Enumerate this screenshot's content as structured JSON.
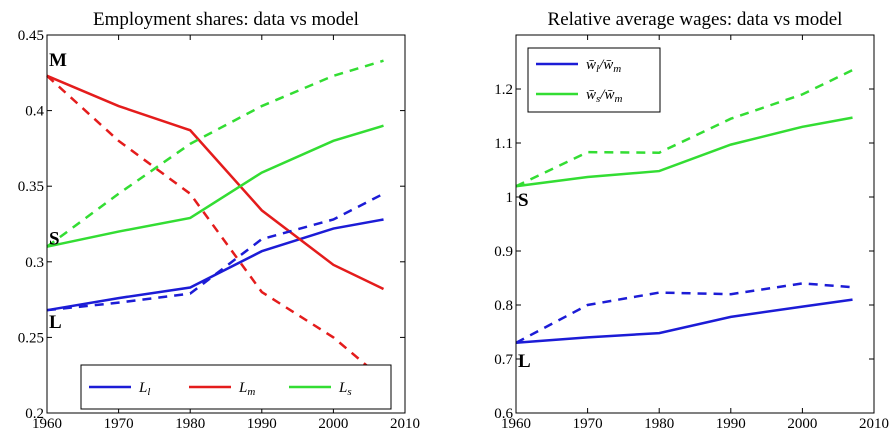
{
  "chart_data": [
    {
      "type": "line",
      "title": "Employment shares: data vs model",
      "x": [
        1960,
        1970,
        1980,
        1990,
        2000,
        2007
      ],
      "xlim": [
        1960,
        2010
      ],
      "xticks": [
        1960,
        1970,
        1980,
        1990,
        2000,
        2010
      ],
      "ylim": [
        0.2,
        0.45
      ],
      "yticks": [
        0.2,
        0.25,
        0.3,
        0.35,
        0.4,
        0.45
      ],
      "legend": "lower center",
      "series": [
        {
          "name": [
            "L",
            "l"
          ],
          "color": "#1c1cd6",
          "values": [
            0.268,
            0.276,
            0.283,
            0.307,
            0.322,
            0.328
          ]
        },
        {
          "name": [
            "L",
            "m"
          ],
          "color": "#e41c1c",
          "values": [
            0.423,
            0.403,
            0.387,
            0.334,
            0.298,
            0.282
          ]
        },
        {
          "name": [
            "L",
            "s"
          ],
          "color": "#33dd33",
          "values": [
            0.31,
            0.32,
            0.329,
            0.359,
            0.38,
            0.39
          ]
        },
        {
          "color": "#1c1cd6",
          "dash": true,
          "values": [
            0.268,
            0.273,
            0.279,
            0.315,
            0.328,
            0.345
          ]
        },
        {
          "color": "#e41c1c",
          "dash": true,
          "values": [
            0.423,
            0.38,
            0.345,
            0.28,
            0.25,
            0.222
          ]
        },
        {
          "color": "#33dd33",
          "dash": true,
          "values": [
            0.31,
            0.345,
            0.378,
            0.403,
            0.423,
            0.433
          ]
        }
      ],
      "annotations": [
        {
          "text": "M",
          "color": "#e41c1c"
        },
        {
          "text": "S",
          "color": "#33dd33"
        },
        {
          "text": "L",
          "color": "#1c1cd6"
        }
      ]
    },
    {
      "type": "line",
      "title": "Relative average wages: data vs model",
      "x": [
        1960,
        1970,
        1980,
        1990,
        2000,
        2007
      ],
      "xlim": [
        1960,
        2010
      ],
      "xticks": [
        1960,
        1970,
        1980,
        1990,
        2000,
        2010
      ],
      "ylim": [
        0.6,
        1.3
      ],
      "yticks": [
        0.6,
        0.7,
        0.8,
        0.9,
        1,
        1.1,
        1.2
      ],
      "legend": "upper left",
      "series": [
        {
          "name": [
            "w̄",
            "l",
            "/w̄",
            "m"
          ],
          "color": "#1c1cd6",
          "values": [
            0.73,
            0.74,
            0.748,
            0.778,
            0.797,
            0.81
          ]
        },
        {
          "name": [
            "w̄",
            "s",
            "/w̄",
            "m"
          ],
          "color": "#33dd33",
          "values": [
            1.02,
            1.037,
            1.048,
            1.097,
            1.13,
            1.147
          ]
        },
        {
          "color": "#1c1cd6",
          "dash": true,
          "values": [
            0.73,
            0.8,
            0.823,
            0.82,
            0.84,
            0.833
          ]
        },
        {
          "color": "#33dd33",
          "dash": true,
          "values": [
            1.02,
            1.083,
            1.082,
            1.145,
            1.19,
            1.235
          ]
        }
      ],
      "annotations": [
        {
          "text": "S",
          "color": "#33dd33"
        },
        {
          "text": "L",
          "color": "#1c1cd6"
        }
      ]
    }
  ]
}
